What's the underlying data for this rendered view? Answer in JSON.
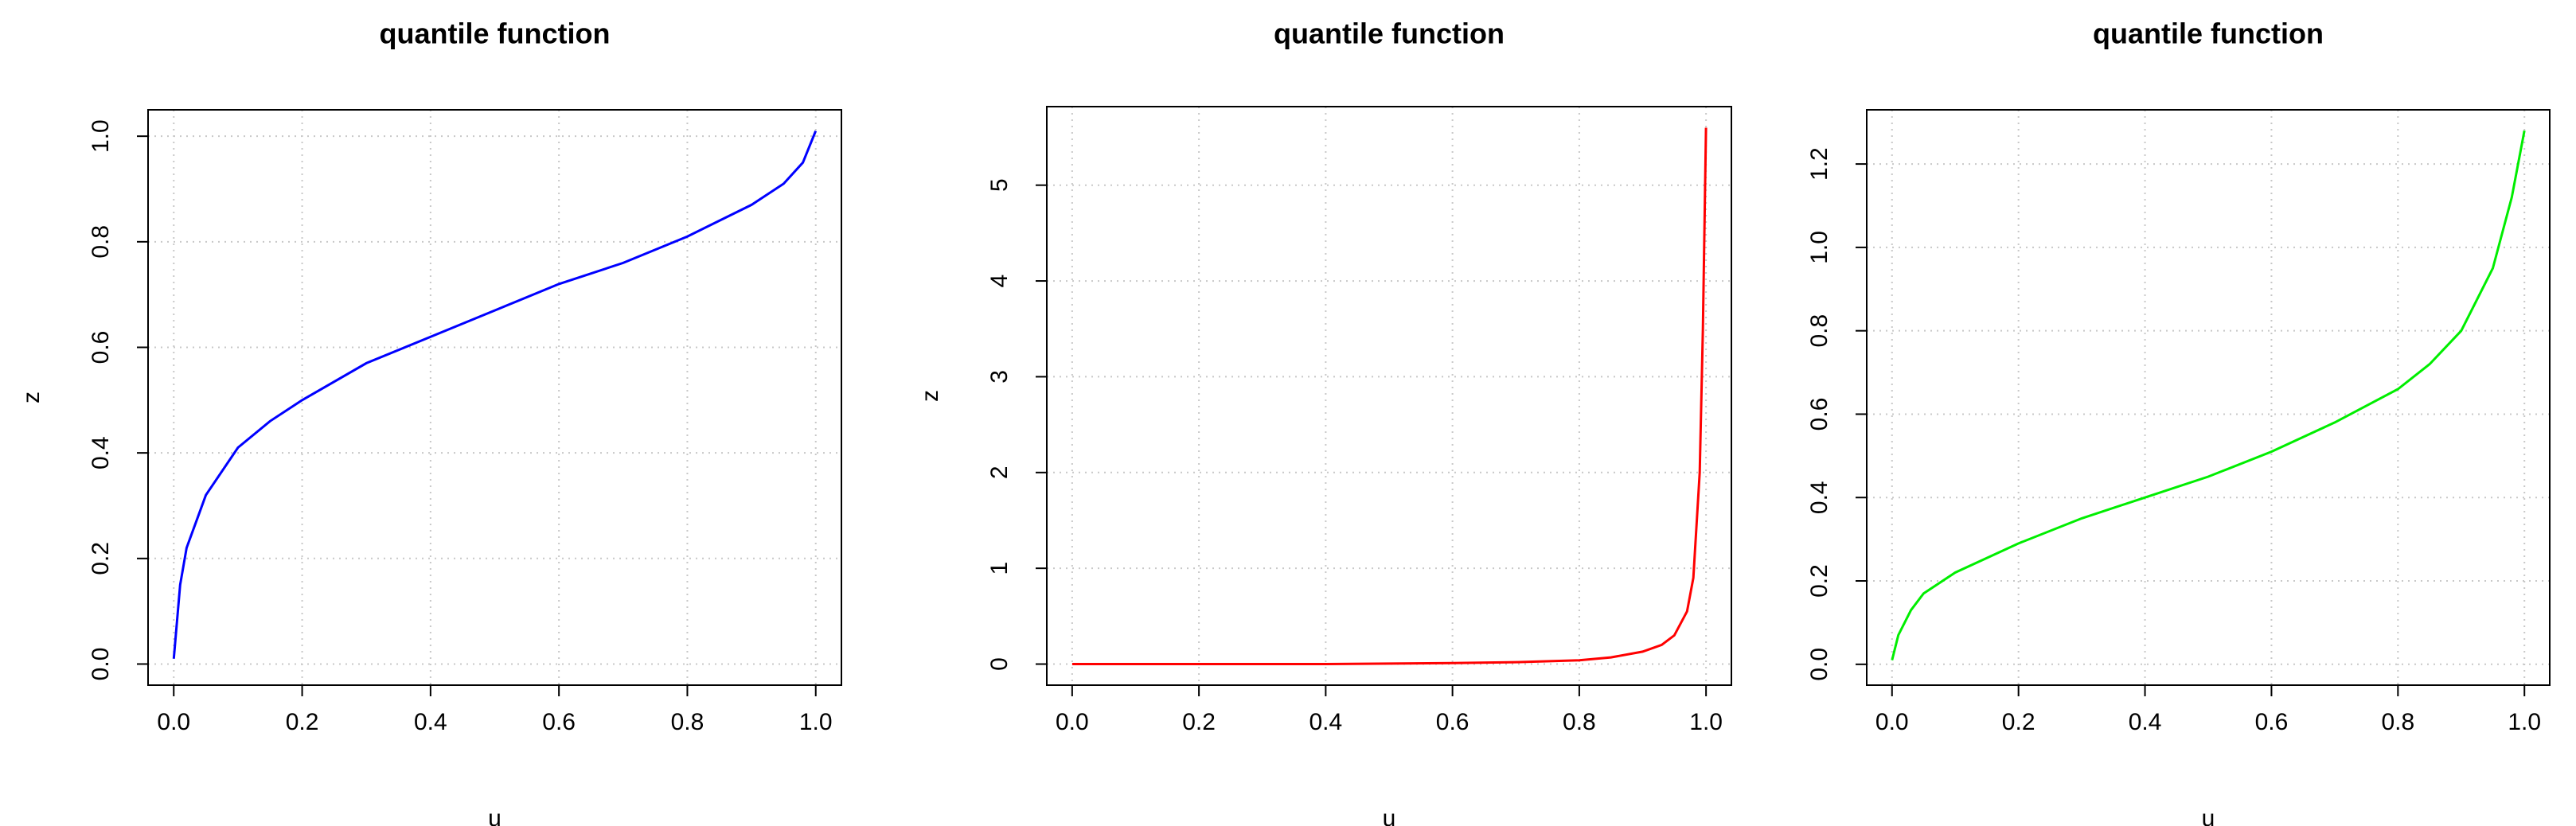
{
  "chart_data": [
    {
      "type": "line",
      "title": "quantile function",
      "x_label": "u",
      "y_label": "z",
      "x": [
        0,
        0.01,
        0.02,
        0.05,
        0.1,
        0.15,
        0.2,
        0.3,
        0.4,
        0.5,
        0.6,
        0.7,
        0.8,
        0.9,
        0.95,
        0.98,
        1.0
      ],
      "series": [
        {
          "color": "#0000ff",
          "values": [
            0.01,
            0.15,
            0.22,
            0.32,
            0.41,
            0.46,
            0.5,
            0.57,
            0.62,
            0.67,
            0.72,
            0.76,
            0.81,
            0.87,
            0.91,
            0.95,
            1.01
          ]
        }
      ],
      "xlim": [
        -0.04,
        1.04
      ],
      "ylim": [
        -0.04,
        1.05
      ],
      "xticks": [
        {
          "value": 0,
          "label": "0.0"
        },
        0.2,
        0.4,
        0.6,
        0.8,
        {
          "value": 1,
          "label": "1.0"
        }
      ],
      "yticks": [
        {
          "value": 0,
          "label": "0.0"
        },
        0.2,
        0.4,
        0.6,
        0.8,
        {
          "value": 1,
          "label": "1.0"
        }
      ],
      "grid": true
    },
    {
      "type": "line",
      "title": "quantile function",
      "x_label": "u",
      "y_label": "z",
      "x": [
        0,
        0.2,
        0.4,
        0.6,
        0.7,
        0.8,
        0.85,
        0.9,
        0.93,
        0.95,
        0.97,
        0.98,
        0.99,
        0.995,
        1.0
      ],
      "series": [
        {
          "color": "#ff0000",
          "values": [
            0,
            0,
            0,
            0.01,
            0.02,
            0.04,
            0.07,
            0.13,
            0.2,
            0.3,
            0.55,
            0.9,
            2.0,
            3.5,
            5.6
          ]
        }
      ],
      "xlim": [
        -0.04,
        1.04
      ],
      "ylim": [
        -0.22,
        5.82
      ],
      "xticks": [
        {
          "value": 0,
          "label": "0.0"
        },
        0.2,
        0.4,
        0.6,
        0.8,
        {
          "value": 1,
          "label": "1.0"
        }
      ],
      "yticks": [
        0,
        1,
        2,
        3,
        4,
        5
      ],
      "grid": true
    },
    {
      "type": "line",
      "title": "quantile function",
      "x_label": "u",
      "x": [
        0,
        0.01,
        0.03,
        0.05,
        0.1,
        0.2,
        0.3,
        0.4,
        0.5,
        0.6,
        0.7,
        0.8,
        0.85,
        0.9,
        0.95,
        0.98,
        1.0
      ],
      "series": [
        {
          "color": "#00ee00",
          "values": [
            0.01,
            0.07,
            0.13,
            0.17,
            0.22,
            0.29,
            0.35,
            0.4,
            0.45,
            0.51,
            0.58,
            0.66,
            0.72,
            0.8,
            0.95,
            1.12,
            1.28
          ]
        }
      ],
      "xlim": [
        -0.04,
        1.04
      ],
      "ylim": [
        -0.05,
        1.33
      ],
      "xticks": [
        {
          "value": 0,
          "label": "0.0"
        },
        0.2,
        0.4,
        0.6,
        0.8,
        {
          "value": 1,
          "label": "1.0"
        }
      ],
      "yticks": [
        {
          "value": 0,
          "label": "0.0"
        },
        0.2,
        0.4,
        0.6,
        0.8,
        {
          "value": 1,
          "label": "1.0"
        },
        1.2
      ],
      "grid": true
    }
  ]
}
